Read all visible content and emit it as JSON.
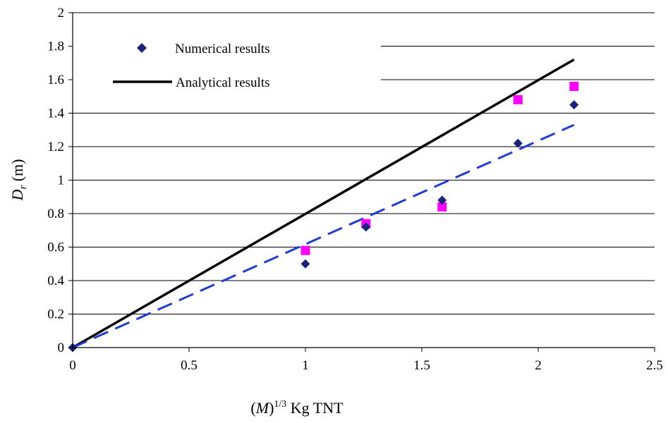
{
  "chart_data": {
    "type": "scatter",
    "xlabel": {
      "base": "(",
      "symbol": "M",
      "close": ")",
      "sup": "1/3",
      "rest": " Kg TNT"
    },
    "ylabel": {
      "symbol": "D",
      "sub": "r",
      "rest": " (m)"
    },
    "xlim": [
      0,
      2.5
    ],
    "ylim": [
      0,
      2
    ],
    "xticks": [
      "0",
      "0.5",
      "1",
      "1.5",
      "2",
      "2.5"
    ],
    "yticks": [
      "0",
      "0.2",
      "0.4",
      "0.6",
      "0.8",
      "1",
      "1.2",
      "1.4",
      "1.6",
      "1.8",
      "2"
    ],
    "grid": "horizontal",
    "legend_placement": "top-left",
    "series": [
      {
        "name": "Numerical results",
        "marker": "diamond",
        "color": "#1a237e",
        "x": [
          0,
          1.0,
          1.26,
          1.587,
          1.913,
          2.154
        ],
        "y": [
          0,
          0.5,
          0.72,
          0.88,
          1.22,
          1.45
        ]
      },
      {
        "name": "Analytical results",
        "kind": "line",
        "color": "#000000",
        "x": [
          0,
          2.154
        ],
        "y": [
          0,
          1.72
        ]
      },
      {
        "kind": "marker",
        "marker": "square",
        "color": "#ff00ff",
        "x": [
          1.0,
          1.26,
          1.587,
          1.913,
          2.154
        ],
        "y": [
          0.58,
          0.74,
          0.84,
          1.48,
          1.56
        ]
      },
      {
        "kind": "dashed-line",
        "color": "#1f3bd6",
        "x": [
          0,
          2.154
        ],
        "y": [
          0,
          1.33
        ]
      }
    ]
  }
}
